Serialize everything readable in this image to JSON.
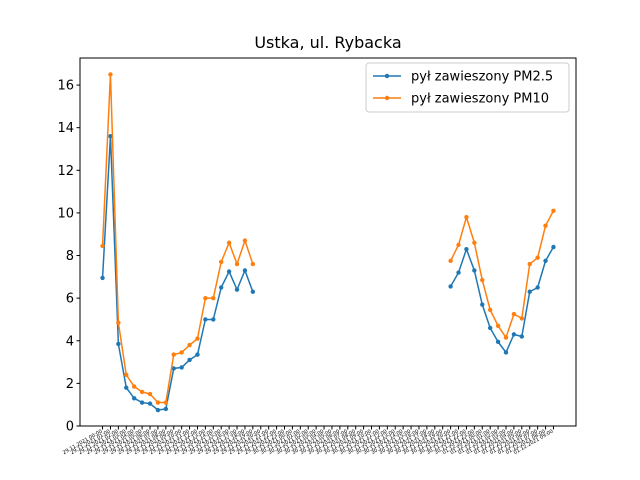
{
  "chart_data": {
    "type": "line",
    "title": "Ustka, ul. Rybacka",
    "categories": [
      "29.11.2021 00:00",
      "29.11.2021 01:00",
      "29.11.2021 02:00",
      "29.11.2021 03:00",
      "29.11.2021 04:00",
      "29.11.2021 05:00",
      "29.11.2021 06:00",
      "29.11.2021 07:00",
      "29.11.2021 08:00",
      "29.11.2021 09:00",
      "29.11.2021 10:00",
      "29.11.2021 11:00",
      "29.11.2021 12:00",
      "29.11.2021 13:00",
      "29.11.2021 14:00",
      "29.11.2021 15:00",
      "29.11.2021 16:00",
      "29.11.2021 17:00",
      "29.11.2021 18:00",
      "29.11.2021 19:00",
      "29.11.2021 20:00",
      "29.11.2021 21:00",
      "29.11.2021 22:00",
      "29.11.2021 23:00",
      "30.11.2021 00:00",
      "30.11.2021 01:00",
      "30.11.2021 02:00",
      "30.11.2021 03:00",
      "30.11.2021 04:00",
      "30.11.2021 05:00",
      "30.11.2021 06:00",
      "30.11.2021 07:00",
      "30.11.2021 08:00",
      "30.11.2021 09:00",
      "30.11.2021 10:00",
      "30.11.2021 11:00",
      "30.11.2021 12:00",
      "30.11.2021 13:00",
      "30.11.2021 14:00",
      "30.11.2021 15:00",
      "30.11.2021 16:00",
      "30.11.2021 17:00",
      "30.11.2021 18:00",
      "30.11.2021 19:00",
      "30.11.2021 20:00",
      "30.11.2021 21:00",
      "30.11.2021 22:00",
      "30.11.2021 23:00",
      "01.12.2021 00:00",
      "01.12.2021 01:00",
      "01.12.2021 02:00",
      "01.12.2021 03:00",
      "01.12.2021 04:00",
      "01.12.2021 05:00",
      "01.12.2021 06:00",
      "01.12.2021 07:00",
      "01.12.2021 08:00",
      "01.12.2021 09:00"
    ],
    "series": [
      {
        "name": "pył zawieszony PM2.5",
        "color": "#1f77b4",
        "values": [
          6.95,
          13.6,
          3.85,
          1.8,
          1.3,
          1.1,
          1.05,
          0.75,
          0.8,
          2.7,
          2.75,
          3.1,
          3.35,
          5.0,
          5.0,
          6.5,
          7.25,
          6.4,
          7.3,
          6.3,
          null,
          null,
          null,
          null,
          null,
          null,
          null,
          null,
          null,
          null,
          null,
          null,
          null,
          null,
          null,
          null,
          null,
          null,
          null,
          null,
          null,
          null,
          null,
          null,
          6.55,
          7.2,
          8.3,
          7.3,
          5.7,
          4.6,
          3.95,
          3.45,
          4.3,
          4.2,
          6.3,
          6.5,
          7.75,
          8.4
        ]
      },
      {
        "name": "pył zawieszony PM10",
        "color": "#ff7f0e",
        "values": [
          8.45,
          16.5,
          4.85,
          2.4,
          1.85,
          1.6,
          1.5,
          1.1,
          1.1,
          3.35,
          3.45,
          3.8,
          4.1,
          6.0,
          6.0,
          7.7,
          8.6,
          7.6,
          8.7,
          7.6,
          null,
          null,
          null,
          null,
          null,
          null,
          null,
          null,
          null,
          null,
          null,
          null,
          null,
          null,
          null,
          null,
          null,
          null,
          null,
          null,
          null,
          null,
          null,
          null,
          7.75,
          8.5,
          9.8,
          8.6,
          6.85,
          5.45,
          4.7,
          4.15,
          5.25,
          5.05,
          7.6,
          7.9,
          9.4,
          10.1
        ]
      }
    ],
    "xlim": [
      -2.85,
      59.85
    ],
    "ylim": [
      0,
      17.27
    ],
    "yticks": [
      0,
      2,
      4,
      6,
      8,
      10,
      12,
      14,
      16
    ],
    "legend": "upper right"
  }
}
